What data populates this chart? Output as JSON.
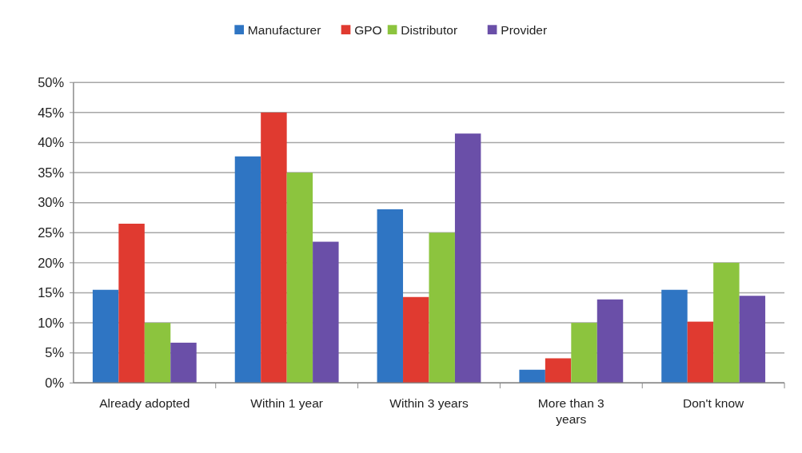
{
  "chart_data": {
    "type": "bar",
    "categories": [
      "Already adopted",
      "Within 1 year",
      "Within 3 years",
      "More than 3 years",
      "Don't know"
    ],
    "series": [
      {
        "name": "Manufacturer",
        "color": "#2f75c3",
        "values": [
          15.5,
          37.7,
          28.9,
          2.2,
          15.5
        ]
      },
      {
        "name": "GPO",
        "color": "#e03a30",
        "values": [
          26.5,
          45,
          14.3,
          4.1,
          10.2
        ]
      },
      {
        "name": "Distributor",
        "color": "#8cc43e",
        "values": [
          10,
          35,
          25,
          10,
          20
        ]
      },
      {
        "name": "Provider",
        "color": "#6a4fa8",
        "values": [
          6.7,
          23.5,
          41.5,
          13.9,
          14.5
        ]
      }
    ],
    "ylim": [
      0,
      50
    ],
    "yticks": [
      {
        "value": 0,
        "label": "0%"
      },
      {
        "value": 5,
        "label": "5%"
      },
      {
        "value": 10,
        "label": "10%"
      },
      {
        "value": 15,
        "label": "15%"
      },
      {
        "value": 20,
        "label": "20%"
      },
      {
        "value": 25,
        "label": "25%"
      },
      {
        "value": 30,
        "label": "30%"
      },
      {
        "value": 35,
        "label": "35%"
      },
      {
        "value": 40,
        "label": "40%"
      },
      {
        "value": 45,
        "label": "45%"
      },
      {
        "value": 50,
        "label": "50%"
      }
    ],
    "grid": "y",
    "legend": "top"
  }
}
